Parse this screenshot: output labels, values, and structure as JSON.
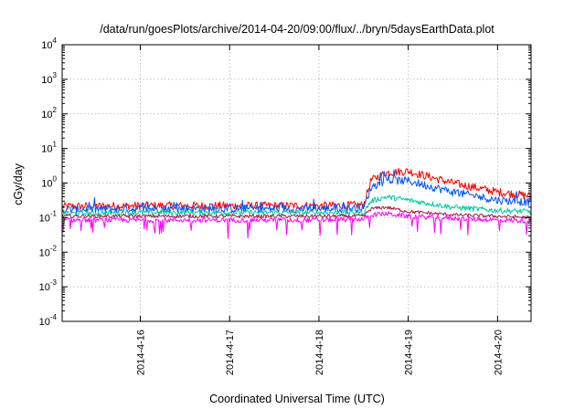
{
  "chart_data": {
    "type": "line",
    "title": "/data/run/goesPlots/archive/2014-04-20/09:00/flux/../bryn/5daysEarthData.plot",
    "xlabel": "Coordinated Universal Time (UTC)",
    "ylabel": "cGy/day",
    "yscale": "log",
    "ylim": [
      0.0001,
      10000
    ],
    "y_ticks": [
      {
        "base": "10",
        "exp": "-4",
        "value": 0.0001
      },
      {
        "base": "10",
        "exp": "-3",
        "value": 0.001
      },
      {
        "base": "10",
        "exp": "-2",
        "value": 0.01
      },
      {
        "base": "10",
        "exp": "-1",
        "value": 0.1
      },
      {
        "base": "10",
        "exp": "0",
        "value": 1
      },
      {
        "base": "10",
        "exp": "1",
        "value": 10
      },
      {
        "base": "10",
        "exp": "2",
        "value": 100
      },
      {
        "base": "10",
        "exp": "3",
        "value": 1000
      },
      {
        "base": "10",
        "exp": "4",
        "value": 10000
      }
    ],
    "xlim": [
      "2014-04-15 03:00",
      "2014-04-20 09:00"
    ],
    "x_ticks": [
      {
        "label": "2014-4-16",
        "value": "2014-04-16 00:00"
      },
      {
        "label": "2014-4-17",
        "value": "2014-04-17 00:00"
      },
      {
        "label": "2014-4-18",
        "value": "2014-04-18 00:00"
      },
      {
        "label": "2014-4-19",
        "value": "2014-04-19 00:00"
      },
      {
        "label": "2014-4-20",
        "value": "2014-04-20 00:00"
      }
    ],
    "grid": true,
    "legend": "none",
    "series": [
      {
        "color": "#ff0000",
        "x": [
          "2014-04-15 03:00",
          "2014-04-16 00:00",
          "2014-04-17 00:00",
          "2014-04-18 00:00",
          "2014-04-18 12:00",
          "2014-04-18 14:00",
          "2014-04-18 18:00",
          "2014-04-19 00:00",
          "2014-04-19 12:00",
          "2014-04-20 00:00",
          "2014-04-20 09:00"
        ],
        "values": [
          0.21,
          0.22,
          0.22,
          0.22,
          0.23,
          1.2,
          2.0,
          2.2,
          1.0,
          0.55,
          0.42
        ]
      },
      {
        "color": "#0055ff",
        "x": [
          "2014-04-15 03:00",
          "2014-04-16 00:00",
          "2014-04-17 00:00",
          "2014-04-18 00:00",
          "2014-04-18 12:00",
          "2014-04-18 14:00",
          "2014-04-18 18:00",
          "2014-04-19 00:00",
          "2014-04-19 12:00",
          "2014-04-20 00:00",
          "2014-04-20 09:00"
        ],
        "values": [
          0.17,
          0.18,
          0.18,
          0.18,
          0.19,
          0.75,
          1.2,
          1.15,
          0.55,
          0.32,
          0.28
        ]
      },
      {
        "color": "#00c8a0",
        "x": [
          "2014-04-15 03:00",
          "2014-04-16 00:00",
          "2014-04-17 00:00",
          "2014-04-18 00:00",
          "2014-04-18 12:00",
          "2014-04-18 14:00",
          "2014-04-18 18:00",
          "2014-04-19 00:00",
          "2014-04-19 12:00",
          "2014-04-20 00:00",
          "2014-04-20 09:00"
        ],
        "values": [
          0.13,
          0.14,
          0.14,
          0.14,
          0.14,
          0.3,
          0.4,
          0.32,
          0.2,
          0.16,
          0.15
        ]
      },
      {
        "color": "#9a1b4a",
        "x": [
          "2014-04-15 03:00",
          "2014-04-16 00:00",
          "2014-04-17 00:00",
          "2014-04-18 00:00",
          "2014-04-18 12:00",
          "2014-04-18 14:00",
          "2014-04-18 18:00",
          "2014-04-19 00:00",
          "2014-04-19 12:00",
          "2014-04-20 00:00",
          "2014-04-20 09:00"
        ],
        "values": [
          0.11,
          0.11,
          0.11,
          0.11,
          0.11,
          0.18,
          0.2,
          0.15,
          0.12,
          0.11,
          0.1
        ]
      },
      {
        "color": "#ff00ff",
        "x": [
          "2014-04-15 03:00",
          "2014-04-16 00:00",
          "2014-04-17 00:00",
          "2014-04-18 00:00",
          "2014-04-18 12:00",
          "2014-04-18 14:00",
          "2014-04-18 18:00",
          "2014-04-19 00:00",
          "2014-04-19 12:00",
          "2014-04-20 00:00",
          "2014-04-20 09:00"
        ],
        "values": [
          0.085,
          0.085,
          0.085,
          0.085,
          0.09,
          0.12,
          0.13,
          0.11,
          0.095,
          0.085,
          0.08
        ]
      }
    ]
  }
}
